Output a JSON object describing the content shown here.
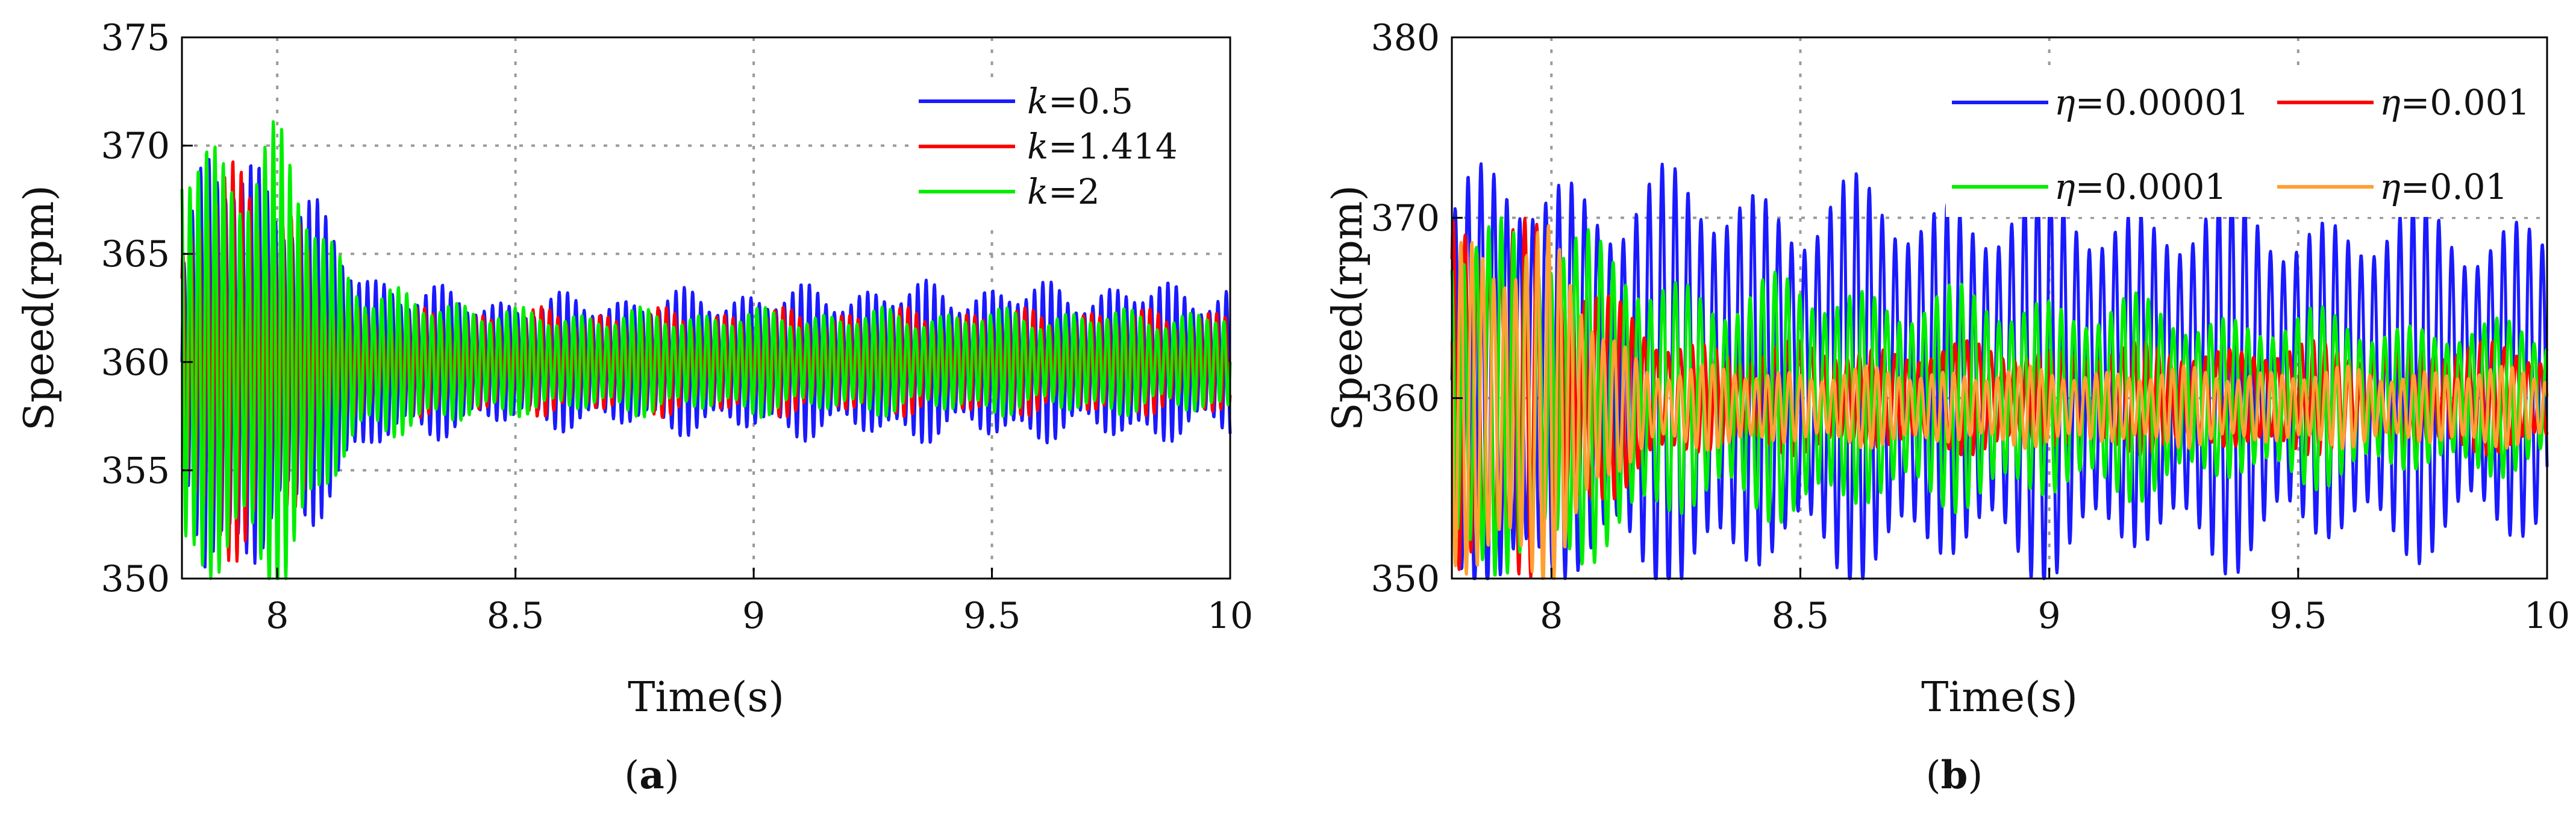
{
  "chart_data": [
    {
      "type": "line",
      "panel_label_prefix": "(",
      "panel_label_letter": "a",
      "panel_label_suffix": ")",
      "xlabel": "Time(s)",
      "ylabel": "Speed(rpm)",
      "xlim": [
        7.8,
        10
      ],
      "ylim": [
        350,
        375
      ],
      "xticks": [
        8,
        8.5,
        9,
        9.5,
        10
      ],
      "xtick_labels": [
        "8",
        "8.5",
        "9",
        "9.5",
        "10"
      ],
      "yticks": [
        350,
        355,
        360,
        365,
        370,
        375
      ],
      "ytick_labels": [
        "350",
        "355",
        "360",
        "365",
        "370",
        "375"
      ],
      "grid": true,
      "legend_position": "top-right",
      "series": [
        {
          "legend_symbol": "k",
          "legend_value": "=0.5",
          "color": "#1a1aff",
          "x": [
            7.8,
            7.85,
            7.9,
            7.95,
            8.0,
            8.05,
            8.1,
            8.15,
            8.2,
            8.3,
            8.4,
            8.5,
            8.7,
            9.0,
            9.3,
            9.6,
            10.0
          ],
          "envelope": [
            4.0,
            8.0,
            8.5,
            8.5,
            7.5,
            7.0,
            5.5,
            4.5,
            3.5,
            3.0,
            2.6,
            2.5,
            2.6,
            2.8,
            3.0,
            3.0,
            3.0
          ],
          "center": 360,
          "period": 0.0175
        },
        {
          "legend_symbol": "k",
          "legend_value": "=1.414",
          "color": "#ff0000",
          "x": [
            7.8,
            7.85,
            7.9,
            7.95,
            8.0,
            8.05,
            8.1,
            8.15,
            8.2,
            8.3,
            8.4,
            8.5,
            8.7,
            9.0,
            9.3,
            9.6,
            10.0
          ],
          "envelope": [
            4.0,
            7.5,
            8.5,
            8.0,
            6.5,
            5.0,
            3.0,
            2.5,
            2.0,
            2.0,
            2.0,
            2.0,
            2.0,
            2.0,
            2.0,
            2.0,
            2.0
          ],
          "center": 360,
          "period": 0.0175
        },
        {
          "legend_symbol": "k",
          "legend_value": "=2",
          "color": "#00ee00",
          "x": [
            7.8,
            7.85,
            7.9,
            7.95,
            8.0,
            8.05,
            8.1,
            8.15,
            8.2,
            8.3,
            8.4,
            8.5,
            8.7,
            9.0,
            9.3,
            9.6,
            10.0
          ],
          "envelope": [
            9.0,
            9.0,
            9.0,
            9.0,
            9.0,
            7.5,
            5.5,
            4.0,
            3.0,
            2.5,
            2.5,
            2.0,
            2.0,
            2.0,
            2.0,
            2.0,
            2.0
          ],
          "center": 360,
          "period": 0.0175
        }
      ]
    },
    {
      "type": "line",
      "panel_label_prefix": "(",
      "panel_label_letter": "b",
      "panel_label_suffix": ")",
      "xlabel": "Time(s)",
      "ylabel": "Speed(rpm)",
      "xlim": [
        7.8,
        10
      ],
      "ylim": [
        350,
        380
      ],
      "xticks": [
        8,
        8.5,
        9,
        9.5,
        10
      ],
      "xtick_labels": [
        "8",
        "8.5",
        "9",
        "9.5",
        "10"
      ],
      "yticks": [
        350,
        360,
        370,
        380
      ],
      "ytick_labels": [
        "350",
        "360",
        "370",
        "380"
      ],
      "grid": true,
      "legend_position": "top-right",
      "series": [
        {
          "legend_symbol": "η",
          "legend_value": "=0.00001",
          "color": "#1a1aff",
          "x": [
            7.8,
            7.9,
            8.0,
            8.1,
            8.2,
            8.4,
            8.6,
            8.8,
            9.0,
            9.2,
            9.4,
            9.6,
            9.8,
            10.0
          ],
          "envelope": [
            9.0,
            10.0,
            10.0,
            10.0,
            9.5,
            9.5,
            9.0,
            9.0,
            9.0,
            8.5,
            8.5,
            8.0,
            8.0,
            8.0
          ],
          "center": 361,
          "period": 0.026
        },
        {
          "legend_symbol": "η",
          "legend_value": "=0.001",
          "color": "#ff0000",
          "x": [
            7.8,
            7.9,
            8.0,
            8.1,
            8.2,
            8.4,
            8.6,
            8.8,
            9.0,
            9.2,
            9.4,
            9.6,
            9.8,
            10.0
          ],
          "envelope": [
            8.0,
            9.0,
            9.0,
            5.0,
            3.0,
            2.5,
            2.5,
            2.5,
            2.5,
            2.5,
            2.5,
            2.5,
            2.5,
            2.5
          ],
          "center": 360,
          "period": 0.024
        },
        {
          "legend_symbol": "η",
          "legend_value": "=0.0001",
          "color": "#00ee00",
          "x": [
            7.8,
            7.9,
            8.0,
            8.1,
            8.2,
            8.4,
            8.6,
            8.8,
            9.0,
            9.2,
            9.4,
            9.6,
            9.8,
            10.0
          ],
          "envelope": [
            8.0,
            9.0,
            9.0,
            7.0,
            6.0,
            5.5,
            5.5,
            5.0,
            5.0,
            4.5,
            4.0,
            4.0,
            3.5,
            3.5
          ],
          "center": 360,
          "period": 0.025
        },
        {
          "legend_symbol": "η",
          "legend_value": "=0.01",
          "color": "#ffa033",
          "x": [
            7.8,
            7.9,
            8.0,
            8.1,
            8.2,
            8.4,
            8.6,
            8.8,
            9.0,
            9.2,
            9.4,
            9.6,
            9.8,
            10.0
          ],
          "envelope": [
            8.0,
            9.0,
            8.0,
            4.0,
            2.0,
            1.8,
            1.8,
            1.8,
            1.8,
            1.8,
            1.8,
            1.8,
            1.8,
            1.8
          ],
          "center": 359.5,
          "period": 0.022
        }
      ]
    }
  ]
}
